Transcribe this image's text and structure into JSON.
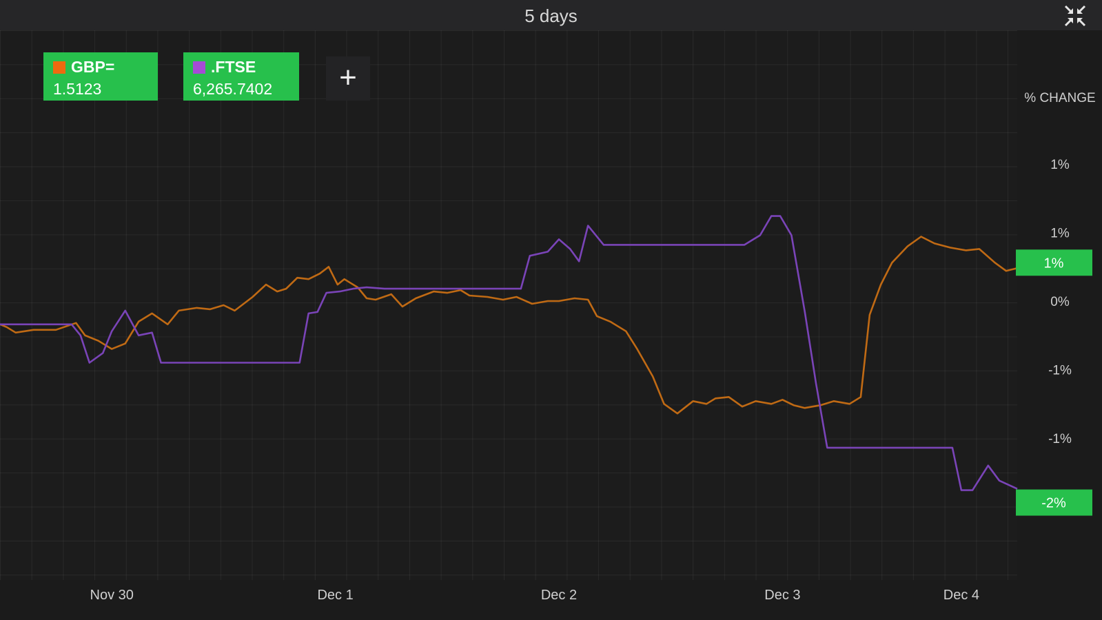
{
  "header": {
    "title": "5 days"
  },
  "icons": {
    "collapse": "collapse-arrows-icon",
    "add": "plus-icon"
  },
  "legend": [
    {
      "name": "GBP=",
      "value": "1.5123",
      "color": "#ee6a0f"
    },
    {
      "name": ".FTSE",
      "value": "6,265.7402",
      "color": "#a54bd6"
    }
  ],
  "add_button": {
    "label": "+"
  },
  "chart_data": {
    "type": "line",
    "title": "5 days",
    "ylabel": "% CHANGE",
    "x_ticks": [
      {
        "label": "Nov 30",
        "x": 0.5
      },
      {
        "label": "Dec 1",
        "x": 1.5
      },
      {
        "label": "Dec 2",
        "x": 2.5
      },
      {
        "label": "Dec 3",
        "x": 3.5
      },
      {
        "label": "Dec 4",
        "x": 4.3
      }
    ],
    "y_ticks": [
      {
        "label": "1%",
        "y": 1.0
      },
      {
        "label": "1%",
        "y": 0.5
      },
      {
        "label": "0%",
        "y": 0.0
      },
      {
        "label": "-1%",
        "y": -0.5
      },
      {
        "label": "-1%",
        "y": -1.0
      }
    ],
    "xlim": [
      0,
      4.55
    ],
    "ylim": [
      -1.5,
      1.5
    ],
    "grid": true,
    "badges": [
      {
        "series": "GBP=",
        "label": "1%",
        "y": 0.28,
        "color": "#27c04c"
      },
      {
        "series": ".FTSE",
        "label": "-2%",
        "y": -1.47,
        "color": "#27c04c"
      }
    ],
    "series": [
      {
        "name": "GBP=",
        "color": "#c06a14",
        "points": [
          [
            0,
            -0.17
          ],
          [
            0.03,
            -0.19
          ],
          [
            0.07,
            -0.23
          ],
          [
            0.15,
            -0.21
          ],
          [
            0.25,
            -0.21
          ],
          [
            0.34,
            -0.16
          ],
          [
            0.38,
            -0.25
          ],
          [
            0.44,
            -0.29
          ],
          [
            0.5,
            -0.35
          ],
          [
            0.56,
            -0.31
          ],
          [
            0.62,
            -0.15
          ],
          [
            0.68,
            -0.09
          ],
          [
            0.75,
            -0.17
          ],
          [
            0.8,
            -0.07
          ],
          [
            0.88,
            -0.05
          ],
          [
            0.94,
            -0.06
          ],
          [
            1.0,
            -0.03
          ],
          [
            1.05,
            -0.07
          ],
          [
            1.13,
            0.03
          ],
          [
            1.19,
            0.12
          ],
          [
            1.24,
            0.07
          ],
          [
            1.28,
            0.09
          ],
          [
            1.33,
            0.17
          ],
          [
            1.38,
            0.16
          ],
          [
            1.43,
            0.2
          ],
          [
            1.47,
            0.25
          ],
          [
            1.51,
            0.12
          ],
          [
            1.54,
            0.16
          ],
          [
            1.6,
            0.1
          ],
          [
            1.64,
            0.02
          ],
          [
            1.68,
            0.01
          ],
          [
            1.75,
            0.05
          ],
          [
            1.8,
            -0.04
          ],
          [
            1.86,
            0.02
          ],
          [
            1.94,
            0.07
          ],
          [
            2.0,
            0.06
          ],
          [
            2.06,
            0.08
          ],
          [
            2.1,
            0.04
          ],
          [
            2.18,
            0.03
          ],
          [
            2.25,
            0.01
          ],
          [
            2.31,
            0.03
          ],
          [
            2.38,
            -0.02
          ],
          [
            2.45,
            0.0
          ],
          [
            2.5,
            0.0
          ],
          [
            2.57,
            0.02
          ],
          [
            2.63,
            0.01
          ],
          [
            2.67,
            -0.11
          ],
          [
            2.73,
            -0.15
          ],
          [
            2.8,
            -0.22
          ],
          [
            2.85,
            -0.35
          ],
          [
            2.92,
            -0.55
          ],
          [
            2.97,
            -0.75
          ],
          [
            3.03,
            -0.82
          ],
          [
            3.1,
            -0.73
          ],
          [
            3.16,
            -0.75
          ],
          [
            3.2,
            -0.71
          ],
          [
            3.26,
            -0.7
          ],
          [
            3.32,
            -0.77
          ],
          [
            3.38,
            -0.73
          ],
          [
            3.45,
            -0.75
          ],
          [
            3.5,
            -0.72
          ],
          [
            3.55,
            -0.76
          ],
          [
            3.6,
            -0.78
          ],
          [
            3.67,
            -0.76
          ],
          [
            3.73,
            -0.73
          ],
          [
            3.8,
            -0.75
          ],
          [
            3.85,
            -0.7
          ],
          [
            3.89,
            -0.1
          ],
          [
            3.94,
            0.12
          ],
          [
            3.99,
            0.28
          ],
          [
            4.06,
            0.4
          ],
          [
            4.12,
            0.47
          ],
          [
            4.18,
            0.42
          ],
          [
            4.25,
            0.39
          ],
          [
            4.32,
            0.37
          ],
          [
            4.38,
            0.38
          ],
          [
            4.45,
            0.28
          ],
          [
            4.5,
            0.22
          ],
          [
            4.55,
            0.24
          ]
        ]
      },
      {
        "name": ".FTSE",
        "color": "#7a44b8",
        "points": [
          [
            0,
            -0.17
          ],
          [
            0.15,
            -0.17
          ],
          [
            0.32,
            -0.17
          ],
          [
            0.36,
            -0.25
          ],
          [
            0.4,
            -0.45
          ],
          [
            0.46,
            -0.38
          ],
          [
            0.5,
            -0.22
          ],
          [
            0.56,
            -0.07
          ],
          [
            0.62,
            -0.25
          ],
          [
            0.68,
            -0.23
          ],
          [
            0.72,
            -0.45
          ],
          [
            0.85,
            -0.45
          ],
          [
            1.0,
            -0.45
          ],
          [
            1.15,
            -0.45
          ],
          [
            1.34,
            -0.45
          ],
          [
            1.38,
            -0.09
          ],
          [
            1.42,
            -0.08
          ],
          [
            1.46,
            0.06
          ],
          [
            1.52,
            0.07
          ],
          [
            1.58,
            0.09
          ],
          [
            1.64,
            0.1
          ],
          [
            1.72,
            0.09
          ],
          [
            1.85,
            0.09
          ],
          [
            2.0,
            0.09
          ],
          [
            2.15,
            0.09
          ],
          [
            2.33,
            0.09
          ],
          [
            2.37,
            0.33
          ],
          [
            2.45,
            0.36
          ],
          [
            2.5,
            0.45
          ],
          [
            2.55,
            0.38
          ],
          [
            2.59,
            0.29
          ],
          [
            2.63,
            0.55
          ],
          [
            2.7,
            0.41
          ],
          [
            2.8,
            0.41
          ],
          [
            2.9,
            0.41
          ],
          [
            3.0,
            0.41
          ],
          [
            3.1,
            0.41
          ],
          [
            3.2,
            0.41
          ],
          [
            3.33,
            0.41
          ],
          [
            3.37,
            0.45
          ],
          [
            3.4,
            0.48
          ],
          [
            3.45,
            0.62
          ],
          [
            3.49,
            0.62
          ],
          [
            3.54,
            0.48
          ],
          [
            3.6,
            -0.08
          ],
          [
            3.65,
            -0.6
          ],
          [
            3.7,
            -1.07
          ],
          [
            3.8,
            -1.07
          ],
          [
            3.95,
            -1.07
          ],
          [
            4.1,
            -1.07
          ],
          [
            4.2,
            -1.07
          ],
          [
            4.26,
            -1.07
          ],
          [
            4.3,
            -1.38
          ],
          [
            4.35,
            -1.38
          ],
          [
            4.42,
            -1.2
          ],
          [
            4.47,
            -1.31
          ],
          [
            4.55,
            -1.37
          ]
        ]
      }
    ]
  }
}
